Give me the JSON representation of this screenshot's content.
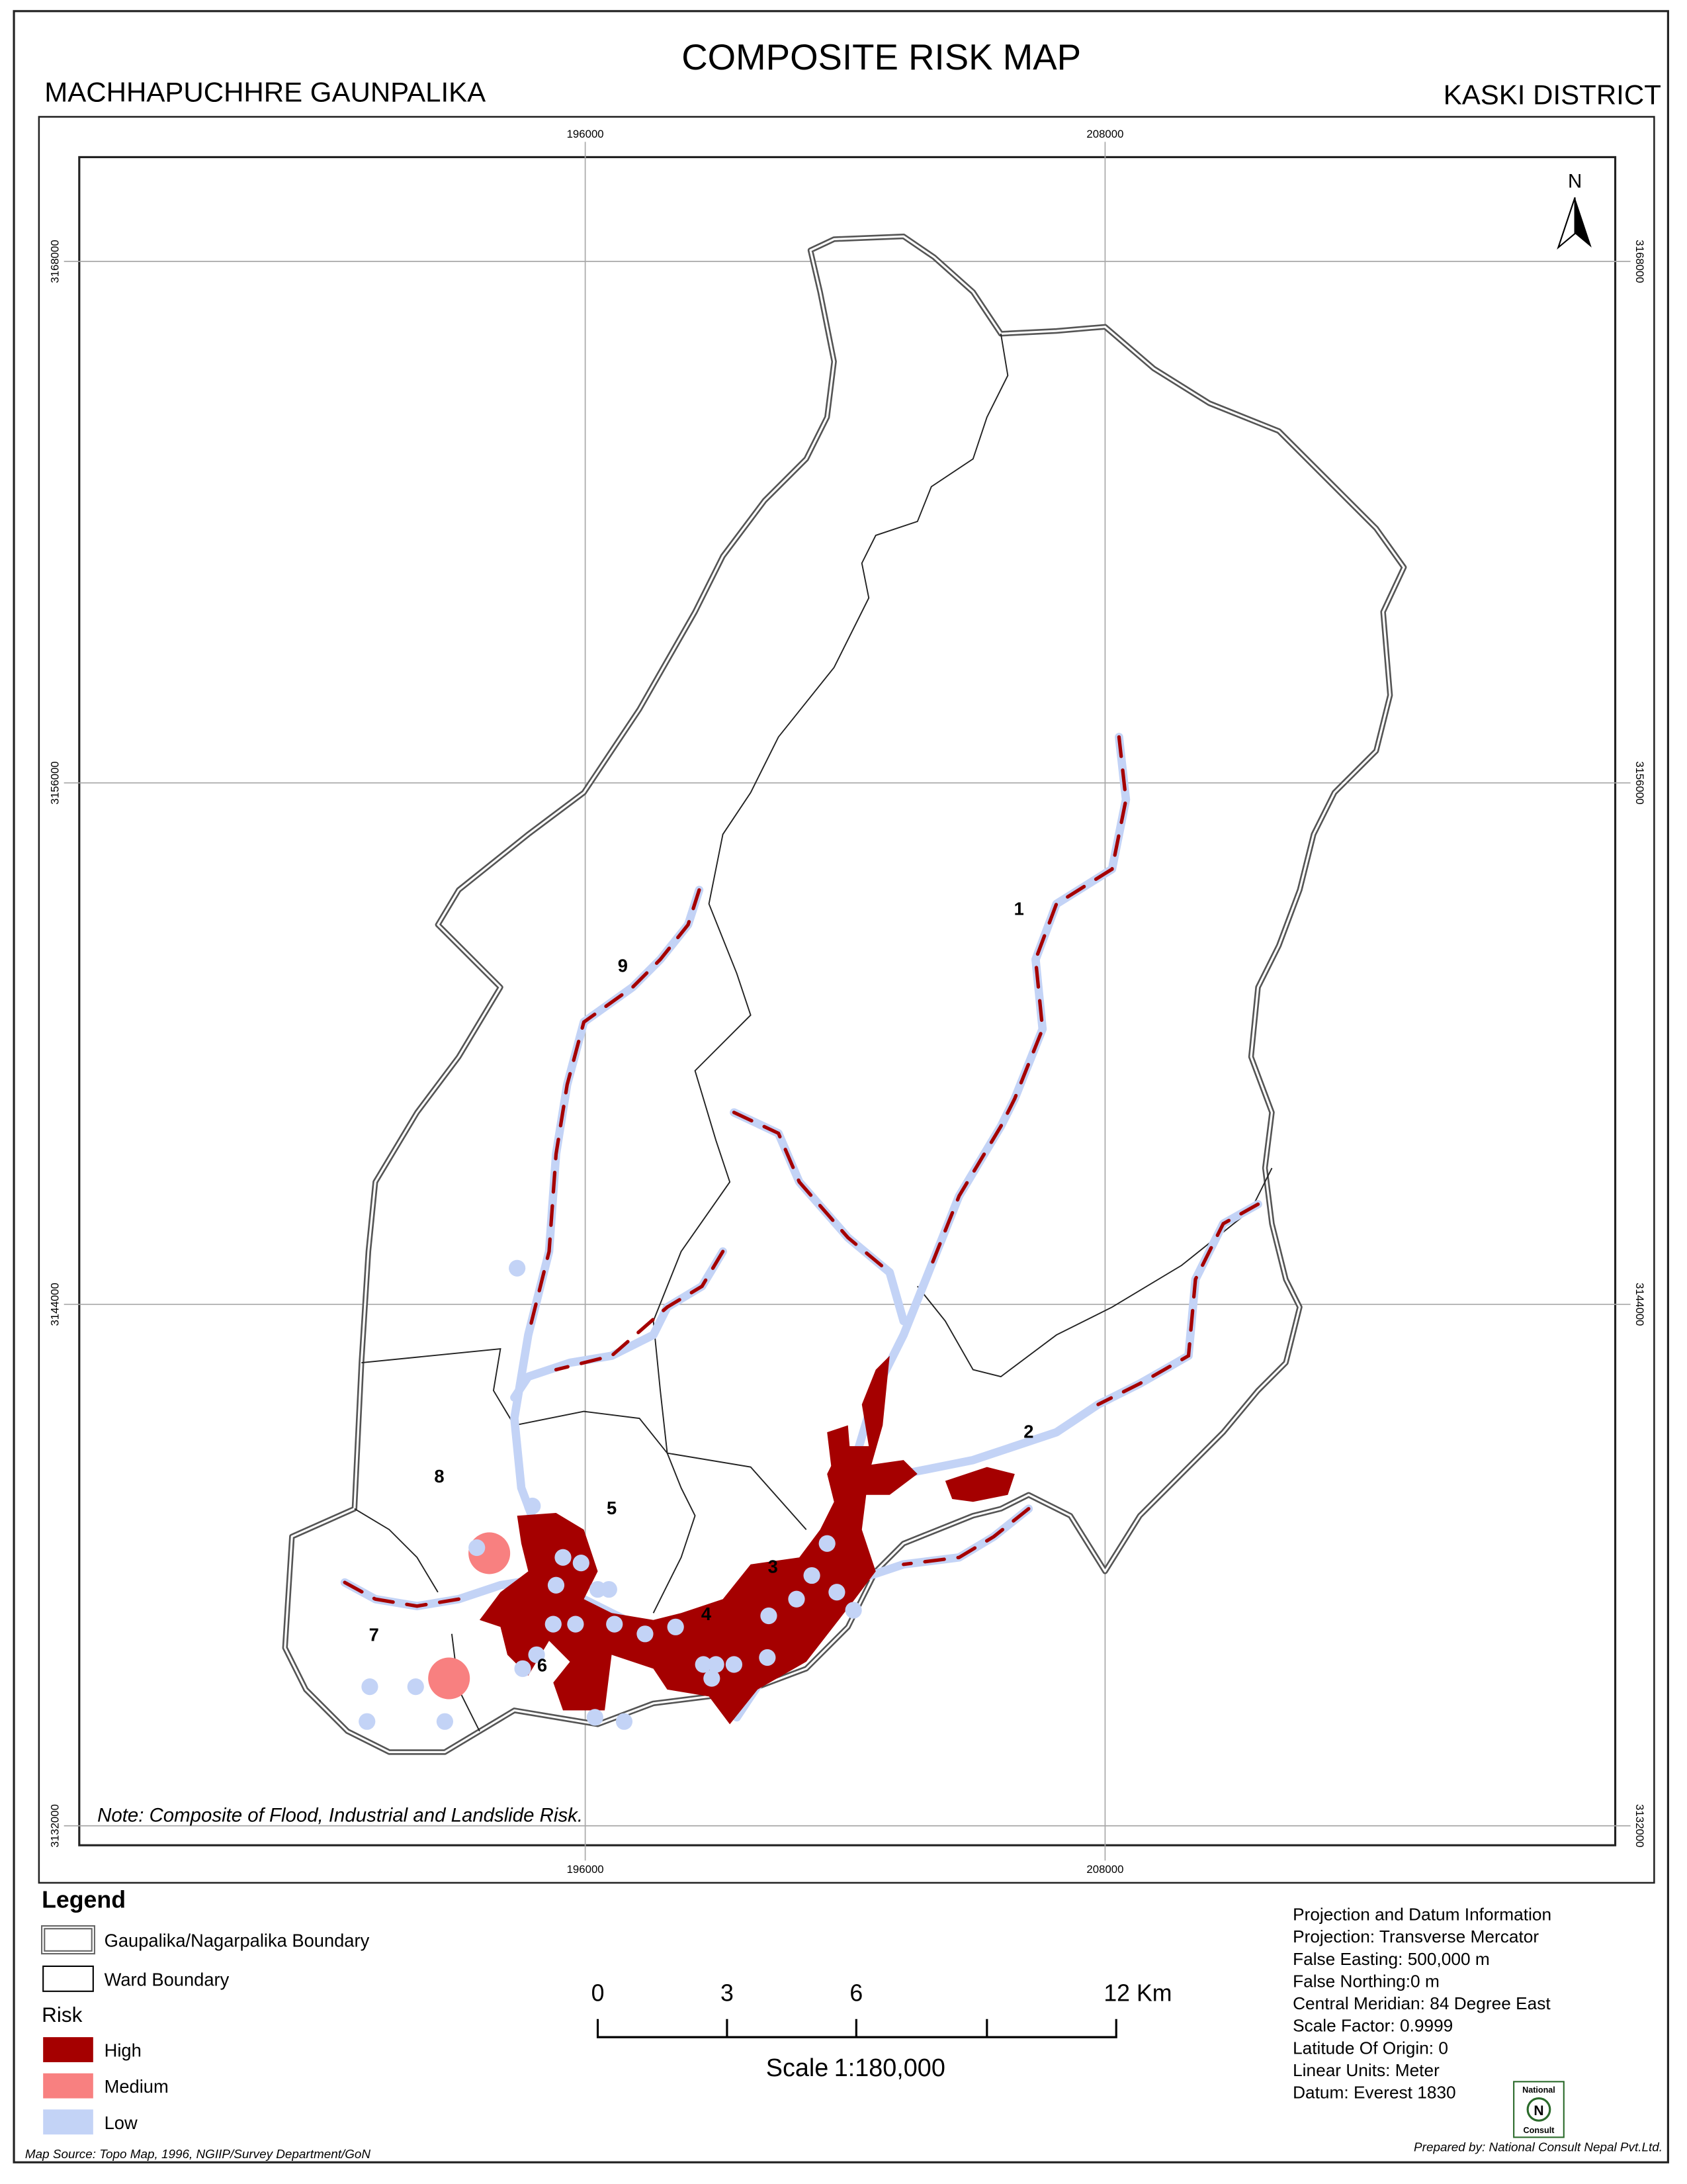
{
  "header": {
    "title": "COMPOSITE RISK MAP",
    "left": "MACHHAPUCHHRE GAUNPALIKA",
    "right": "KASKI DISTRICT"
  },
  "grid": {
    "eastings": [
      196000,
      208000
    ],
    "northings": [
      3168000,
      3156000,
      3144000,
      3132000
    ]
  },
  "north": "N",
  "wards": [
    "1",
    "2",
    "3",
    "4",
    "5",
    "6",
    "7",
    "8",
    "9"
  ],
  "note": "Note: Composite of Flood, Industrial and Landslide Risk.",
  "legend": {
    "title": "Legend",
    "boundaries": [
      "Gaupalika/Nagarpalika Boundary",
      "Ward Boundary"
    ],
    "risk_title": "Risk",
    "risk": [
      "High",
      "Medium",
      "Low"
    ]
  },
  "scale": {
    "ticks": [
      "0",
      "3",
      "6",
      "12 Km"
    ],
    "label": "Scale",
    "ratio": "1:180,000"
  },
  "projection": [
    "Projection and Datum Information",
    "Projection: Transverse Mercator",
    "False Easting: 500,000 m",
    "False Northing:0 m",
    "Central Meridian: 84 Degree East",
    "Scale Factor: 0.9999",
    "Latitude Of Origin: 0",
    "Linear Units: Meter",
    "Datum: Everest 1830"
  ],
  "source": "Map Source: Topo Map, 1996, NGIIP/Survey Department/GoN",
  "prepared": "Prepared by: National Consult Nepal Pvt.Ltd.",
  "logo": [
    "National",
    "N",
    "Consult"
  ]
}
